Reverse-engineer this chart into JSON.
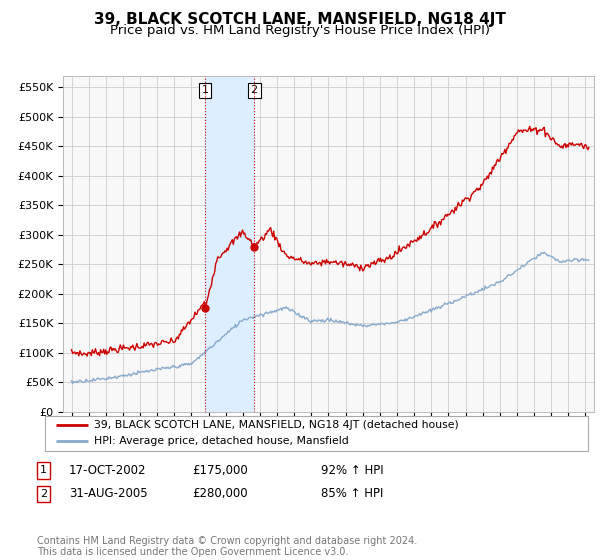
{
  "title": "39, BLACK SCOTCH LANE, MANSFIELD, NG18 4JT",
  "subtitle": "Price paid vs. HM Land Registry's House Price Index (HPI)",
  "ylabel_ticks": [
    "£0",
    "£50K",
    "£100K",
    "£150K",
    "£200K",
    "£250K",
    "£300K",
    "£350K",
    "£400K",
    "£450K",
    "£500K",
    "£550K"
  ],
  "ytick_values": [
    0,
    50000,
    100000,
    150000,
    200000,
    250000,
    300000,
    350000,
    400000,
    450000,
    500000,
    550000
  ],
  "ylim": [
    0,
    570000
  ],
  "xlim_start": 1994.5,
  "xlim_end": 2025.5,
  "transaction1_date": 2002.79,
  "transaction1_price": 175000,
  "transaction2_date": 2005.66,
  "transaction2_price": 280000,
  "vline1_x": 2002.79,
  "vline2_x": 2005.66,
  "shade_x1": 2002.79,
  "shade_x2": 2005.66,
  "red_line_color": "#cc0000",
  "blue_line_color": "#88aacc",
  "shade_color": "#ddeeff",
  "grid_color": "#cccccc",
  "bg_color": "#f8f8f8",
  "legend_entries": [
    "39, BLACK SCOTCH LANE, MANSFIELD, NG18 4JT (detached house)",
    "HPI: Average price, detached house, Mansfield"
  ],
  "table_rows": [
    {
      "num": "1",
      "date": "17-OCT-2002",
      "price": "£175,000",
      "hpi": "92% ↑ HPI"
    },
    {
      "num": "2",
      "date": "31-AUG-2005",
      "price": "£280,000",
      "hpi": "85% ↑ HPI"
    }
  ],
  "footer": "Contains HM Land Registry data © Crown copyright and database right 2024.\nThis data is licensed under the Open Government Licence v3.0.",
  "title_fontsize": 11,
  "subtitle_fontsize": 9.5,
  "tick_fontsize": 8,
  "label_fontsize": 9
}
